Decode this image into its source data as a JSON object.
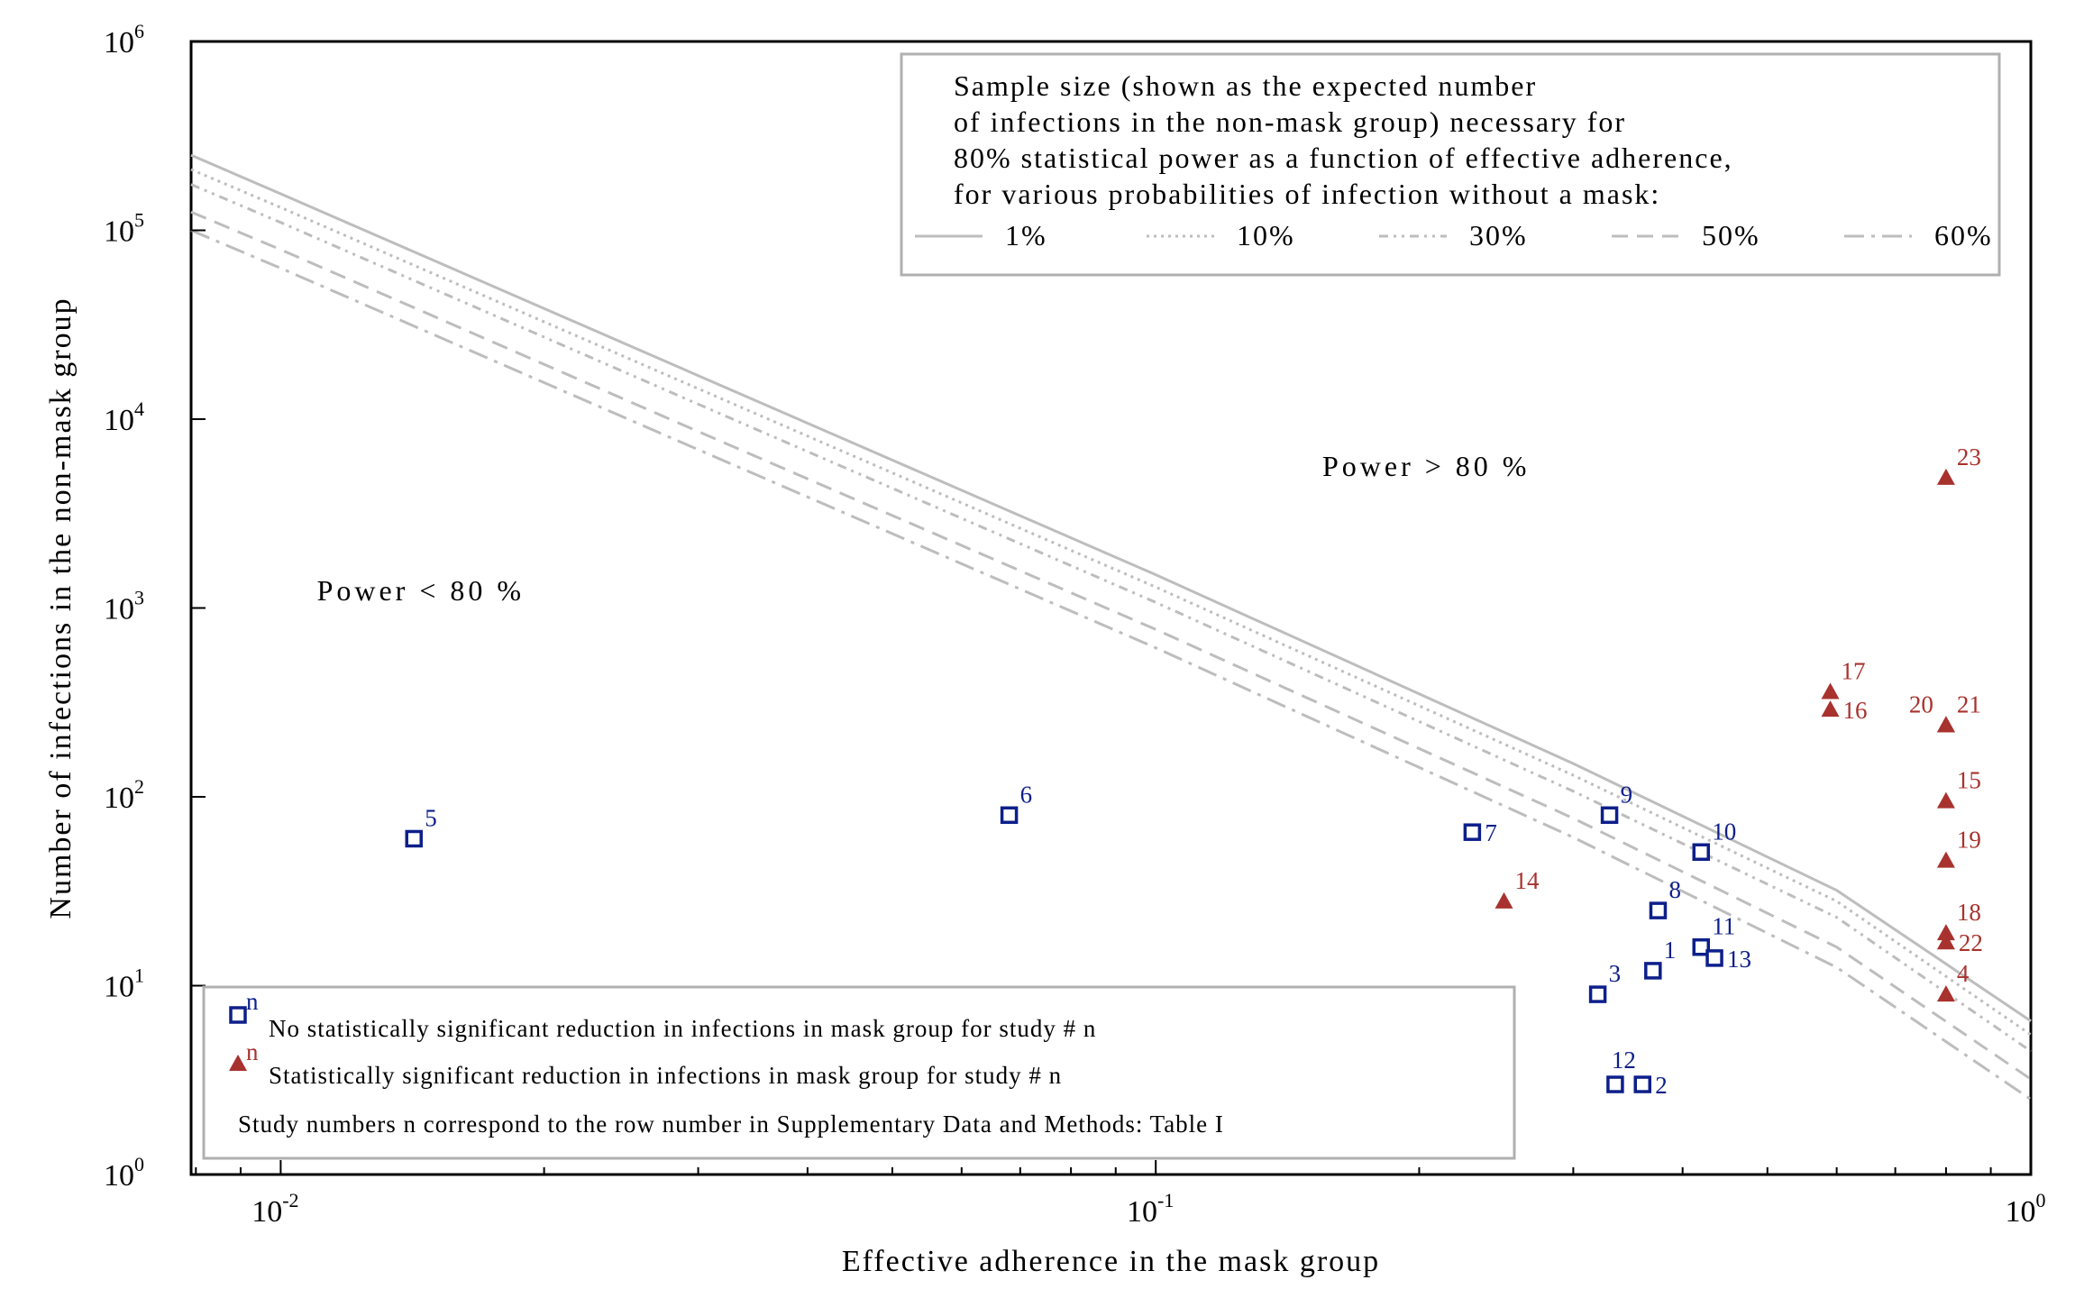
{
  "chart_data": {
    "type": "scatter",
    "title": "",
    "xlabel": "Effective adherence in the mask group",
    "ylabel": "Number of infections in the non-mask group",
    "x_scale": "log",
    "y_scale": "log",
    "xlim": [
      0.0079,
      1.0
    ],
    "ylim": [
      1,
      1000000
    ],
    "x_ticks": [
      {
        "value": 0.01,
        "base": "10",
        "exp": "-2"
      },
      {
        "value": 0.1,
        "base": "10",
        "exp": "-1"
      },
      {
        "value": 1,
        "base": "10",
        "exp": "0"
      }
    ],
    "y_ticks": [
      {
        "value": 1,
        "base": "10",
        "exp": "0"
      },
      {
        "value": 10,
        "base": "10",
        "exp": "1"
      },
      {
        "value": 100,
        "base": "10",
        "exp": "2"
      },
      {
        "value": 1000,
        "base": "10",
        "exp": "3"
      },
      {
        "value": 10000,
        "base": "10",
        "exp": "4"
      },
      {
        "value": 100000,
        "base": "10",
        "exp": "5"
      },
      {
        "value": 1000000,
        "base": "10",
        "exp": "6"
      }
    ],
    "regions": [
      {
        "text": "Power > 80 %",
        "x": 0.155,
        "y": 5000
      },
      {
        "text": "Power < 80 %",
        "x": 0.011,
        "y": 1100
      }
    ],
    "power_curves": {
      "legend_title": [
        "Sample size (shown as the expected number",
        "of infections in the non-mask group) necessary for",
        "80% statistical power as a function of effective adherence,",
        "for various probabilities of infection without a mask:"
      ],
      "series": [
        {
          "name": "1%",
          "dash": "solid",
          "x": [
            0.0079,
            0.01,
            0.03,
            0.1,
            0.3,
            0.6,
            1.0
          ],
          "y": [
            250000,
            156000,
            17000,
            1500,
            150,
            32,
            6.5
          ]
        },
        {
          "name": "10%",
          "dash": "dotted",
          "x": [
            0.0079,
            0.01,
            0.03,
            0.1,
            0.3,
            0.6,
            1.0
          ],
          "y": [
            210000,
            132000,
            14500,
            1290,
            130,
            28,
            5.5
          ]
        },
        {
          "name": "30%",
          "dash": "dashdotdot",
          "x": [
            0.0079,
            0.01,
            0.03,
            0.1,
            0.3,
            0.6,
            1.0
          ],
          "y": [
            175000,
            110000,
            12000,
            1070,
            107,
            23,
            4.5
          ]
        },
        {
          "name": "50%",
          "dash": "dashed",
          "x": [
            0.0079,
            0.01,
            0.03,
            0.1,
            0.3,
            0.6,
            1.0
          ],
          "y": [
            125000,
            79000,
            8600,
            770,
            77,
            16,
            3.2
          ]
        },
        {
          "name": "60%",
          "dash": "dashdot",
          "x": [
            0.0079,
            0.01,
            0.03,
            0.1,
            0.3,
            0.6,
            1.0
          ],
          "y": [
            100000,
            63000,
            6900,
            615,
            61,
            12.5,
            2.5
          ]
        }
      ]
    },
    "studies": [
      {
        "n": "1",
        "x": 0.37,
        "y": 12,
        "significant": false,
        "label_pos": "ne"
      },
      {
        "n": "2",
        "x": 0.36,
        "y": 3,
        "significant": false,
        "label_pos": "e"
      },
      {
        "n": "3",
        "x": 0.32,
        "y": 9,
        "significant": false,
        "label_pos": "ne"
      },
      {
        "n": "4",
        "x": 0.8,
        "y": 9,
        "significant": true,
        "label_pos": "ne"
      },
      {
        "n": "5",
        "x": 0.0142,
        "y": 60,
        "significant": false,
        "label_pos": "ne"
      },
      {
        "n": "6",
        "x": 0.068,
        "y": 80,
        "significant": false,
        "label_pos": "ne"
      },
      {
        "n": "7",
        "x": 0.23,
        "y": 65,
        "significant": false,
        "label_pos": "e"
      },
      {
        "n": "8",
        "x": 0.375,
        "y": 25,
        "significant": false,
        "label_pos": "ne"
      },
      {
        "n": "9",
        "x": 0.33,
        "y": 80,
        "significant": false,
        "label_pos": "ne"
      },
      {
        "n": "10",
        "x": 0.42,
        "y": 51,
        "significant": false,
        "label_pos": "ne"
      },
      {
        "n": "11",
        "x": 0.42,
        "y": 16,
        "significant": false,
        "label_pos": "ne"
      },
      {
        "n": "12",
        "x": 0.335,
        "y": 3,
        "significant": false,
        "label_pos": "n"
      },
      {
        "n": "13",
        "x": 0.435,
        "y": 14,
        "significant": false,
        "label_pos": "e"
      },
      {
        "n": "14",
        "x": 0.25,
        "y": 28,
        "significant": true,
        "label_pos": "ne"
      },
      {
        "n": "15",
        "x": 0.8,
        "y": 95,
        "significant": true,
        "label_pos": "ne"
      },
      {
        "n": "16",
        "x": 0.59,
        "y": 290,
        "significant": true,
        "label_pos": "e"
      },
      {
        "n": "17",
        "x": 0.59,
        "y": 360,
        "significant": true,
        "label_pos": "ne"
      },
      {
        "n": "18",
        "x": 0.8,
        "y": 19,
        "significant": true,
        "label_pos": "ne"
      },
      {
        "n": "19",
        "x": 0.8,
        "y": 46,
        "significant": true,
        "label_pos": "ne"
      },
      {
        "n": "20",
        "x": 0.8,
        "y": 240,
        "significant": true,
        "label_pos": "nw"
      },
      {
        "n": "21",
        "x": 0.8,
        "y": 240,
        "significant": true,
        "label_pos": "ne"
      },
      {
        "n": "22",
        "x": 0.8,
        "y": 17,
        "significant": true,
        "label_pos": "e"
      },
      {
        "n": "23",
        "x": 0.8,
        "y": 4900,
        "significant": true,
        "label_pos": "ne"
      }
    ],
    "marker_legend": {
      "marker_letter": "n",
      "not_significant": "No statistically significant reduction in infections in mask group for study # n",
      "significant": "Statistically significant reduction in infections in mask group for study # n",
      "note": "Study numbers n correspond to the row number in Supplementary Data and Methods: Table I"
    },
    "colors": {
      "not_significant": "#0d1f8a",
      "significant": "#a8322e",
      "curve": "#bdbdbd",
      "axis": "#000000",
      "legend_border": "#b0b0b0"
    }
  }
}
